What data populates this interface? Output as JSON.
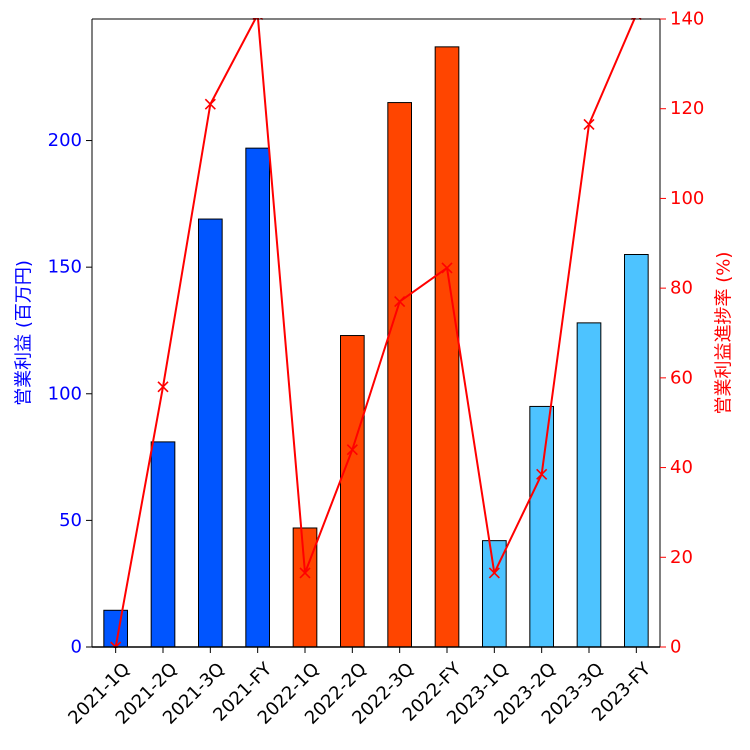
{
  "chart_data": {
    "type": "bar",
    "categories": [
      "2021-1Q",
      "2021-2Q",
      "2021-3Q",
      "2021-FY",
      "2022-1Q",
      "2022-2Q",
      "2022-3Q",
      "2022-FY",
      "2023-1Q",
      "2023-2Q",
      "2023-3Q",
      "2023-FY"
    ],
    "series": [
      {
        "name": "",
        "type": "bar",
        "axis": "left",
        "values": [
          14.5,
          81,
          169,
          197,
          47,
          123,
          215,
          237,
          42,
          95,
          128,
          155
        ],
        "bar_colors": [
          "#0055ff",
          "#0055ff",
          "#0055ff",
          "#0055ff",
          "#ff4500",
          "#ff4500",
          "#ff4500",
          "#ff4500",
          "#4dc3ff",
          "#4dc3ff",
          "#4dc3ff",
          "#4dc3ff"
        ]
      },
      {
        "name": "",
        "type": "line",
        "axis": "right",
        "marker": "x",
        "color": "#ff0000",
        "values": [
          0,
          58,
          121,
          141,
          16.5,
          44,
          77,
          84.5,
          16.5,
          38.5,
          116.5,
          141
        ]
      }
    ],
    "ylabel": "営業利益 (百万円)",
    "ylabel_right": "営業利益進捗率 (%)",
    "ylim": [
      0,
      248
    ],
    "ylim_right": [
      0,
      140
    ],
    "yticks": [
      0,
      50,
      100,
      150,
      200
    ],
    "yticks_right": [
      0,
      20,
      40,
      60,
      80,
      100,
      120,
      140
    ],
    "left_axis_color": "#0000ff",
    "right_axis_color": "#ff0000",
    "grid": false,
    "legend": "none"
  }
}
